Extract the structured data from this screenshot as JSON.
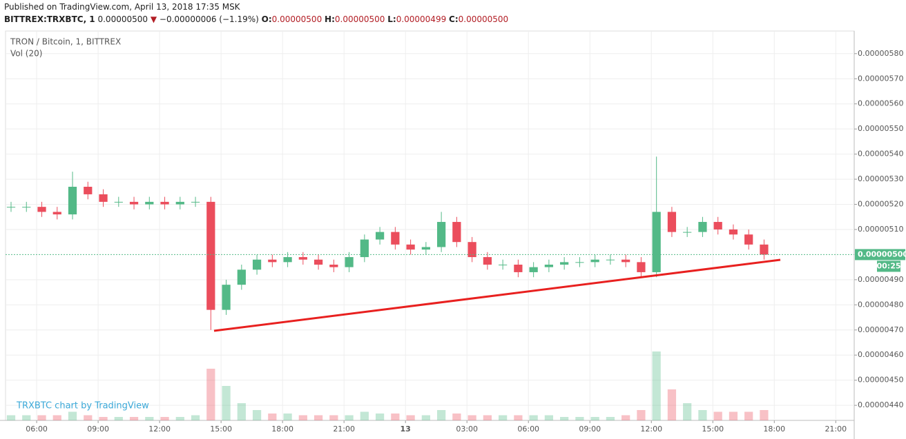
{
  "header": {
    "published": "Published on TradingView.com, April 13, 2018 17:35 MSK",
    "symbol": "BITTREX:TRXBTC, 1",
    "last": "0.00000500",
    "arrow": "▼",
    "change": "−0.00000006 (−1.19%)",
    "o_label": "O:",
    "o": "0.00000500",
    "h_label": "H:",
    "h": "0.00000500",
    "l_label": "L:",
    "l": "0.00000499",
    "c_label": "C:",
    "c": "0.00000500"
  },
  "chart_data": {
    "type": "candlestick",
    "title": "TRON / Bitcoin, 1, BITTREX",
    "volume_label": "Vol (20)",
    "watermark": "TRXBTC chart by TradingView",
    "up_color": "#53b987",
    "down_color": "#eb4d5c",
    "x": [
      4.75,
      5.5,
      6.25,
      7,
      7.75,
      8.5,
      9.25,
      10,
      10.75,
      11.5,
      12.25,
      13,
      13.75,
      14.5,
      15.25,
      16,
      16.75,
      17.5,
      18.25,
      19,
      19.75,
      20.5,
      21.25,
      22,
      22.75,
      23.5,
      24.25,
      25,
      25.75,
      26.5,
      27.25,
      28,
      28.75,
      29.5,
      30.25,
      31,
      31.75,
      32.5,
      33.25,
      34,
      34.75,
      35.5,
      36.25,
      37,
      37.75,
      38.5,
      39.25,
      40,
      40.75,
      41.5
    ],
    "open": [
      5.19e-06,
      5.19e-06,
      5.19e-06,
      5.17e-06,
      5.16e-06,
      5.27e-06,
      5.24e-06,
      5.21e-06,
      5.21e-06,
      5.2e-06,
      5.21e-06,
      5.2e-06,
      5.21e-06,
      5.21e-06,
      4.78e-06,
      4.88e-06,
      4.94e-06,
      4.98e-06,
      4.97e-06,
      4.99e-06,
      4.98e-06,
      4.96e-06,
      4.95e-06,
      4.99e-06,
      5.06e-06,
      5.09e-06,
      5.04e-06,
      5.02e-06,
      5.03e-06,
      5.13e-06,
      5.05e-06,
      4.99e-06,
      4.96e-06,
      4.96e-06,
      4.93e-06,
      4.95e-06,
      4.96e-06,
      4.97e-06,
      4.97e-06,
      4.98e-06,
      4.98e-06,
      4.97e-06,
      4.93e-06,
      5.17e-06,
      5.09e-06,
      5.09e-06,
      5.13e-06,
      5.1e-06,
      5.08e-06,
      5.04e-06
    ],
    "high": [
      5.21e-06,
      5.21e-06,
      5.21e-06,
      5.19e-06,
      5.33e-06,
      5.29e-06,
      5.26e-06,
      5.23e-06,
      5.23e-06,
      5.23e-06,
      5.23e-06,
      5.23e-06,
      5.23e-06,
      5.23e-06,
      4.9e-06,
      4.96e-06,
      5e-06,
      5e-06,
      5.01e-06,
      5.01e-06,
      5e-06,
      4.98e-06,
      5.01e-06,
      5.08e-06,
      5.11e-06,
      5.11e-06,
      5.06e-06,
      5.05e-06,
      5.17e-06,
      5.15e-06,
      5.07e-06,
      5.01e-06,
      4.98e-06,
      4.98e-06,
      4.97e-06,
      4.98e-06,
      4.99e-06,
      4.99e-06,
      5e-06,
      5e-06,
      5e-06,
      4.99e-06,
      5.39e-06,
      5.19e-06,
      5.11e-06,
      5.15e-06,
      5.15e-06,
      5.12e-06,
      5.1e-06,
      5.06e-06
    ],
    "low": [
      5.17e-06,
      5.17e-06,
      5.15e-06,
      5.14e-06,
      5.14e-06,
      5.22e-06,
      5.19e-06,
      5.19e-06,
      5.18e-06,
      5.18e-06,
      5.18e-06,
      5.18e-06,
      5.19e-06,
      4.7e-06,
      4.76e-06,
      4.86e-06,
      4.92e-06,
      4.95e-06,
      4.95e-06,
      4.96e-06,
      4.94e-06,
      4.93e-06,
      4.93e-06,
      4.97e-06,
      5.04e-06,
      5.02e-06,
      5e-06,
      5e-06,
      5.01e-06,
      5.03e-06,
      4.97e-06,
      4.94e-06,
      4.94e-06,
      4.91e-06,
      4.91e-06,
      4.93e-06,
      4.94e-06,
      4.95e-06,
      4.95e-06,
      4.96e-06,
      4.95e-06,
      4.91e-06,
      4.91e-06,
      5.07e-06,
      5.07e-06,
      5.07e-06,
      5.08e-06,
      5.06e-06,
      5.02e-06,
      4.98e-06
    ],
    "close": [
      5.19e-06,
      5.19e-06,
      5.17e-06,
      5.16e-06,
      5.27e-06,
      5.24e-06,
      5.21e-06,
      5.21e-06,
      5.2e-06,
      5.21e-06,
      5.2e-06,
      5.21e-06,
      5.21e-06,
      4.78e-06,
      4.88e-06,
      4.94e-06,
      4.98e-06,
      4.97e-06,
      4.99e-06,
      4.98e-06,
      4.96e-06,
      4.95e-06,
      4.99e-06,
      5.06e-06,
      5.09e-06,
      5.04e-06,
      5.02e-06,
      5.03e-06,
      5.13e-06,
      5.05e-06,
      4.99e-06,
      4.96e-06,
      4.96e-06,
      4.93e-06,
      4.95e-06,
      4.96e-06,
      4.97e-06,
      4.97e-06,
      4.98e-06,
      4.98e-06,
      4.97e-06,
      4.93e-06,
      5.17e-06,
      5.09e-06,
      5.09e-06,
      5.13e-06,
      5.1e-06,
      5.08e-06,
      5.04e-06,
      5e-06
    ],
    "volume": [
      3,
      3,
      3,
      3,
      5,
      3,
      2,
      2,
      2,
      2,
      2,
      2,
      3,
      30,
      20,
      10,
      6,
      4,
      4,
      3,
      3,
      3,
      3,
      5,
      4,
      4,
      3,
      3,
      6,
      4,
      3,
      3,
      3,
      3,
      3,
      3,
      2,
      2,
      2,
      2,
      3,
      6,
      40,
      18,
      10,
      6,
      5,
      5,
      5,
      6
    ],
    "xlim": [
      4.48,
      45.9
    ],
    "xticks": [
      {
        "value": 6,
        "label": "06:00"
      },
      {
        "value": 9,
        "label": "09:00"
      },
      {
        "value": 12,
        "label": "12:00"
      },
      {
        "value": 15,
        "label": "15:00"
      },
      {
        "value": 18,
        "label": "18:00"
      },
      {
        "value": 21,
        "label": "21:00"
      },
      {
        "value": 24,
        "label": "13"
      },
      {
        "value": 27,
        "label": "03:00"
      },
      {
        "value": 30,
        "label": "06:00"
      },
      {
        "value": 33,
        "label": "09:00"
      },
      {
        "value": 36,
        "label": "12:00"
      },
      {
        "value": 39,
        "label": "15:00"
      },
      {
        "value": 42,
        "label": "18:00"
      },
      {
        "value": 45,
        "label": "21:00"
      }
    ],
    "ylim": [
      4.34e-06,
      5.89e-06
    ],
    "yticks": [
      {
        "value": 4.4e-06,
        "label": "0.00000440"
      },
      {
        "value": 4.5e-06,
        "label": "0.00000450"
      },
      {
        "value": 4.6e-06,
        "label": "0.00000460"
      },
      {
        "value": 4.7e-06,
        "label": "0.00000470"
      },
      {
        "value": 4.8e-06,
        "label": "0.00000480"
      },
      {
        "value": 4.9e-06,
        "label": "0.00000490"
      },
      {
        "value": 5.1e-06,
        "label": "0.00000510"
      },
      {
        "value": 5.2e-06,
        "label": "0.00000520"
      },
      {
        "value": 5.3e-06,
        "label": "0.00000530"
      },
      {
        "value": 5.4e-06,
        "label": "0.00000540"
      },
      {
        "value": 5.5e-06,
        "label": "0.00000550"
      },
      {
        "value": 5.6e-06,
        "label": "0.00000560"
      },
      {
        "value": 5.7e-06,
        "label": "0.00000570"
      },
      {
        "value": 5.8e-06,
        "label": "0.00000580"
      }
    ],
    "price_line": {
      "value": 5e-06,
      "label": "0.00000500"
    },
    "countdown": "00:25",
    "grid": true
  }
}
